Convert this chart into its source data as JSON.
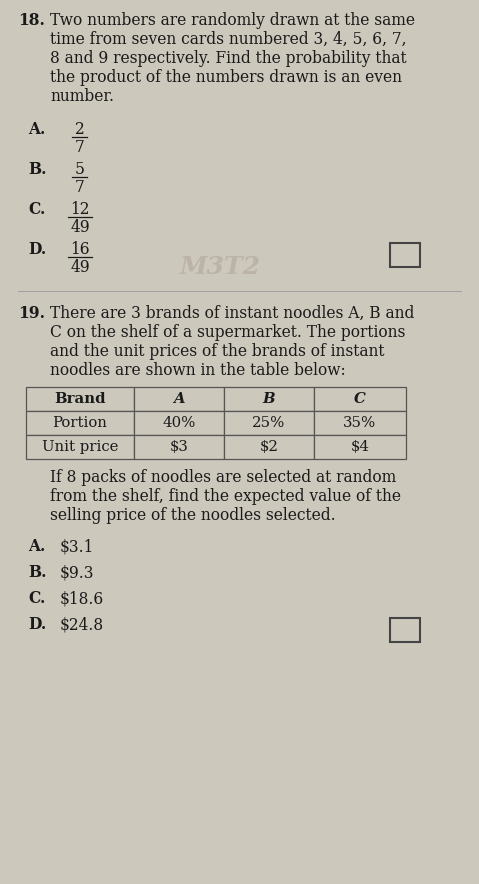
{
  "bg_color": "#cdc8bc",
  "text_color": "#1a1a1a",
  "q18_number": "18.",
  "q18_lines": [
    "Two numbers are randomly drawn at the same",
    "time from seven cards numbered 3, 4, 5, 6, 7,",
    "8 and 9 respectively. Find the probability that",
    "the product of the numbers drawn is an even",
    "number."
  ],
  "q18_options": [
    {
      "label": "A.",
      "num": "2",
      "den": "7"
    },
    {
      "label": "B.",
      "num": "5",
      "den": "7"
    },
    {
      "label": "C.",
      "num": "12",
      "den": "49"
    },
    {
      "label": "D.",
      "num": "16",
      "den": "49"
    }
  ],
  "q19_number": "19.",
  "q19_lines": [
    "There are 3 brands of instant noodles A, B and",
    "C on the shelf of a supermarket. The portions",
    "and the unit prices of the brands of instant",
    "noodles are shown in the table below:"
  ],
  "table_headers": [
    "Brand",
    "A",
    "B",
    "C"
  ],
  "table_row1": [
    "Portion",
    "40%",
    "25%",
    "35%"
  ],
  "table_row2": [
    "Unit price",
    "$3",
    "$2",
    "$4"
  ],
  "q19_after_lines": [
    "If 8 packs of noodles are selected at random",
    "from the shelf, find the expected value of the",
    "selling price of the noodles selected."
  ],
  "q19_options": [
    {
      "label": "A.",
      "value": "$3.1"
    },
    {
      "label": "B.",
      "value": "$9.3"
    },
    {
      "label": "C.",
      "value": "$18.6"
    },
    {
      "label": "D.",
      "value": "$24.8"
    }
  ],
  "watermark": "M3T2",
  "fs": 11.2
}
